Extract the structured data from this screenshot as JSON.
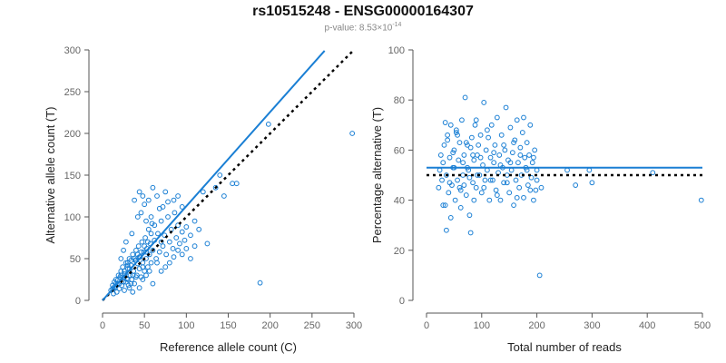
{
  "title": "rs10515248 - ENSG00000164307",
  "subtitle": {
    "prefix": "p-value: 8.53×10",
    "exponent": "-14"
  },
  "colors": {
    "point": "#1a7fd4",
    "fit": "#1a7fd4",
    "reference": "#000000"
  },
  "chart_data": [
    {
      "type": "scatter",
      "xlabel": "Reference allele count (C)",
      "ylabel": "Alternative allele count (T)",
      "xlim": [
        0,
        300
      ],
      "ylim": [
        0,
        300
      ],
      "xticks": [
        0,
        50,
        100,
        150,
        200,
        250,
        300
      ],
      "yticks": [
        0,
        50,
        100,
        150,
        200,
        250,
        300
      ],
      "fit_line": {
        "x": [
          0,
          265
        ],
        "y": [
          0,
          299
        ]
      },
      "reference_line": {
        "x": [
          0,
          300
        ],
        "y": [
          0,
          300
        ]
      },
      "points": [
        [
          10,
          12
        ],
        [
          12,
          18
        ],
        [
          13,
          8
        ],
        [
          14,
          22
        ],
        [
          15,
          15
        ],
        [
          16,
          25
        ],
        [
          17,
          10
        ],
        [
          18,
          20
        ],
        [
          19,
          30
        ],
        [
          20,
          14
        ],
        [
          21,
          28
        ],
        [
          22,
          35
        ],
        [
          23,
          18
        ],
        [
          24,
          40
        ],
        [
          25,
          22
        ],
        [
          26,
          12
        ],
        [
          27,
          32
        ],
        [
          28,
          45
        ],
        [
          29,
          26
        ],
        [
          30,
          38
        ],
        [
          31,
          18
        ],
        [
          32,
          50
        ],
        [
          33,
          30
        ],
        [
          34,
          42
        ],
        [
          35,
          25
        ],
        [
          36,
          55
        ],
        [
          37,
          35
        ],
        [
          38,
          20
        ],
        [
          39,
          48
        ],
        [
          40,
          60
        ],
        [
          41,
          30
        ],
        [
          42,
          44
        ],
        [
          43,
          65
        ],
        [
          44,
          38
        ],
        [
          45,
          52
        ],
        [
          46,
          28
        ],
        [
          47,
          70
        ],
        [
          48,
          45
        ],
        [
          49,
          58
        ],
        [
          50,
          35
        ],
        [
          51,
          75
        ],
        [
          52,
          50
        ],
        [
          53,
          62
        ],
        [
          54,
          40
        ],
        [
          55,
          85
        ],
        [
          56,
          55
        ],
        [
          57,
          68
        ],
        [
          58,
          45
        ],
        [
          59,
          92
        ],
        [
          60,
          60
        ],
        [
          62,
          72
        ],
        [
          64,
          50
        ],
        [
          66,
          80
        ],
        [
          68,
          58
        ],
        [
          70,
          95
        ],
        [
          72,
          65
        ],
        [
          74,
          78
        ],
        [
          76,
          55
        ],
        [
          78,
          100
        ],
        [
          80,
          70
        ],
        [
          82,
          85
        ],
        [
          84,
          62
        ],
        [
          86,
          105
        ],
        [
          88,
          75
        ],
        [
          90,
          90
        ],
        [
          92,
          68
        ],
        [
          95,
          82
        ],
        [
          98,
          72
        ],
        [
          100,
          88
        ],
        [
          105,
          78
        ],
        [
          110,
          95
        ],
        [
          115,
          85
        ],
        [
          120,
          130
        ],
        [
          125,
          68
        ],
        [
          135,
          135
        ],
        [
          140,
          150
        ],
        [
          145,
          125
        ],
        [
          155,
          140
        ],
        [
          160,
          140
        ],
        [
          188,
          21
        ],
        [
          198,
          211
        ],
        [
          298,
          200
        ],
        [
          30,
          45
        ],
        [
          35,
          80
        ],
        [
          38,
          120
        ],
        [
          42,
          100
        ],
        [
          44,
          130
        ],
        [
          46,
          105
        ],
        [
          48,
          125
        ],
        [
          50,
          115
        ],
        [
          52,
          95
        ],
        [
          55,
          120
        ],
        [
          58,
          100
        ],
        [
          60,
          135
        ],
        [
          65,
          125
        ],
        [
          68,
          110
        ],
        [
          72,
          112
        ],
        [
          75,
          130
        ],
        [
          78,
          118
        ],
        [
          85,
          120
        ],
        [
          90,
          125
        ],
        [
          95,
          112
        ],
        [
          22,
          50
        ],
        [
          25,
          60
        ],
        [
          28,
          70
        ],
        [
          30,
          25
        ],
        [
          32,
          15
        ],
        [
          34,
          20
        ],
        [
          36,
          10
        ],
        [
          40,
          28
        ],
        [
          44,
          15
        ],
        [
          48,
          25
        ],
        [
          52,
          30
        ],
        [
          56,
          35
        ],
        [
          60,
          20
        ],
        [
          65,
          45
        ],
        [
          70,
          35
        ],
        [
          75,
          40
        ],
        [
          80,
          45
        ],
        [
          85,
          52
        ],
        [
          90,
          60
        ],
        [
          95,
          55
        ],
        [
          100,
          62
        ],
        [
          105,
          50
        ],
        [
          110,
          65
        ],
        [
          70,
          70
        ],
        [
          62,
          90
        ],
        [
          58,
          80
        ],
        [
          54,
          70
        ],
        [
          50,
          65
        ],
        [
          46,
          58
        ],
        [
          42,
          55
        ],
        [
          38,
          50
        ],
        [
          34,
          48
        ],
        [
          30,
          42
        ],
        [
          26,
          35
        ],
        [
          22,
          30
        ],
        [
          18,
          24
        ],
        [
          16,
          20
        ],
        [
          14,
          16
        ],
        [
          12,
          14
        ],
        [
          20,
          20
        ],
        [
          24,
          28
        ],
        [
          28,
          22
        ],
        [
          32,
          38
        ],
        [
          36,
          30
        ],
        [
          40,
          48
        ],
        [
          44,
          52
        ],
        [
          48,
          40
        ],
        [
          52,
          58
        ]
      ]
    },
    {
      "type": "scatter",
      "xlabel": "Total number of reads",
      "ylabel": "Percentage alternative (T)",
      "xlim": [
        0,
        500
      ],
      "ylim": [
        0,
        100
      ],
      "xticks": [
        0,
        100,
        200,
        300,
        400,
        500
      ],
      "yticks": [
        0,
        20,
        40,
        60,
        80,
        100
      ],
      "fit_line": {
        "y": 53
      },
      "reference_line": {
        "y": 50
      },
      "points": [
        [
          22,
          45
        ],
        [
          24,
          52
        ],
        [
          26,
          58
        ],
        [
          28,
          48
        ],
        [
          30,
          55
        ],
        [
          32,
          62
        ],
        [
          34,
          38
        ],
        [
          36,
          50
        ],
        [
          38,
          66
        ],
        [
          40,
          43
        ],
        [
          42,
          57
        ],
        [
          44,
          70
        ],
        [
          46,
          46
        ],
        [
          48,
          53
        ],
        [
          50,
          60
        ],
        [
          52,
          40
        ],
        [
          54,
          68
        ],
        [
          56,
          48
        ],
        [
          58,
          56
        ],
        [
          60,
          63
        ],
        [
          62,
          44
        ],
        [
          64,
          72
        ],
        [
          66,
          50
        ],
        [
          68,
          58
        ],
        [
          70,
          81
        ],
        [
          72,
          42
        ],
        [
          74,
          62
        ],
        [
          76,
          52
        ],
        [
          78,
          34
        ],
        [
          80,
          27
        ],
        [
          82,
          65
        ],
        [
          84,
          47
        ],
        [
          86,
          56
        ],
        [
          88,
          70
        ],
        [
          90,
          45
        ],
        [
          92,
          58
        ],
        [
          94,
          62
        ],
        [
          96,
          50
        ],
        [
          98,
          66
        ],
        [
          100,
          43
        ],
        [
          102,
          54
        ],
        [
          104,
          79
        ],
        [
          106,
          48
        ],
        [
          108,
          60
        ],
        [
          110,
          52
        ],
        [
          112,
          65
        ],
        [
          114,
          40
        ],
        [
          116,
          57
        ],
        [
          118,
          70
        ],
        [
          120,
          48
        ],
        [
          122,
          55
        ],
        [
          124,
          62
        ],
        [
          126,
          44
        ],
        [
          128,
          73
        ],
        [
          130,
          51
        ],
        [
          132,
          58
        ],
        [
          134,
          40
        ],
        [
          136,
          66
        ],
        [
          138,
          53
        ],
        [
          140,
          47
        ],
        [
          142,
          60
        ],
        [
          144,
          77
        ],
        [
          146,
          50
        ],
        [
          148,
          56
        ],
        [
          150,
          43
        ],
        [
          152,
          69
        ],
        [
          154,
          52
        ],
        [
          156,
          59
        ],
        [
          158,
          38
        ],
        [
          160,
          64
        ],
        [
          162,
          48
        ],
        [
          164,
          72
        ],
        [
          166,
          55
        ],
        [
          168,
          45
        ],
        [
          170,
          61
        ],
        [
          172,
          50
        ],
        [
          174,
          67
        ],
        [
          176,
          41
        ],
        [
          178,
          57
        ],
        [
          180,
          53
        ],
        [
          182,
          63
        ],
        [
          184,
          46
        ],
        [
          186,
          58
        ],
        [
          188,
          70
        ],
        [
          190,
          49
        ],
        [
          192,
          55
        ],
        [
          194,
          40
        ],
        [
          196,
          60
        ],
        [
          198,
          44
        ],
        [
          200,
          52
        ],
        [
          205,
          10
        ],
        [
          208,
          45
        ],
        [
          255,
          52
        ],
        [
          270,
          46
        ],
        [
          295,
          52
        ],
        [
          300,
          47
        ],
        [
          410,
          51
        ],
        [
          498,
          40
        ],
        [
          30,
          38
        ],
        [
          34,
          71
        ],
        [
          38,
          64
        ],
        [
          44,
          33
        ],
        [
          50,
          53
        ],
        [
          56,
          66
        ],
        [
          62,
          37
        ],
        [
          68,
          46
        ],
        [
          74,
          53
        ],
        [
          80,
          61
        ],
        [
          86,
          40
        ],
        [
          92,
          50
        ],
        [
          98,
          57
        ],
        [
          104,
          45
        ],
        [
          110,
          68
        ],
        [
          116,
          48
        ],
        [
          122,
          59
        ],
        [
          128,
          42
        ],
        [
          134,
          54
        ],
        [
          140,
          62
        ],
        [
          146,
          47
        ],
        [
          152,
          55
        ],
        [
          158,
          63
        ],
        [
          164,
          41
        ],
        [
          170,
          58
        ],
        [
          176,
          73
        ],
        [
          182,
          52
        ],
        [
          188,
          44
        ],
        [
          194,
          57
        ],
        [
          200,
          48
        ],
        [
          36,
          28
        ],
        [
          42,
          47
        ],
        [
          48,
          59
        ],
        [
          54,
          67
        ],
        [
          60,
          45
        ],
        [
          66,
          55
        ],
        [
          72,
          63
        ],
        [
          78,
          49
        ],
        [
          84,
          58
        ],
        [
          90,
          72
        ]
      ]
    }
  ]
}
